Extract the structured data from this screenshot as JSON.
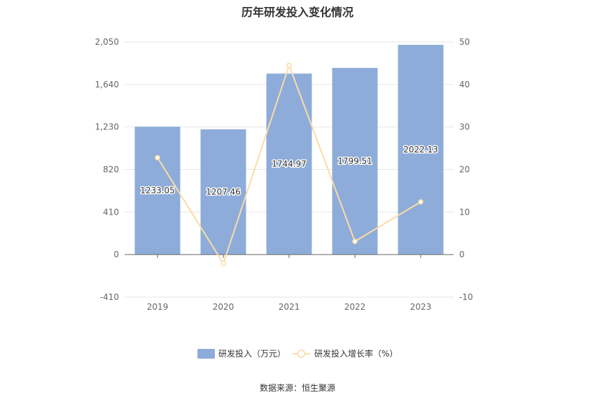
{
  "chart_data": {
    "type": "bar",
    "title": "历年研发投入变化情况",
    "categories": [
      "2019",
      "2020",
      "2021",
      "2022",
      "2023"
    ],
    "series": [
      {
        "name": "研发投入（万元）",
        "type": "bar",
        "axis": "left",
        "values": [
          1233.05,
          1207.46,
          1744.97,
          1799.51,
          2022.13
        ],
        "color": "#8eacd9"
      },
      {
        "name": "研发投入增长率（%）",
        "type": "line",
        "axis": "right",
        "values": [
          22.8,
          -2.1,
          44.5,
          3.1,
          12.4
        ],
        "color": "#fbdca6"
      }
    ],
    "y_left": {
      "min": -410,
      "max": 2050,
      "ticks": [
        -410,
        0,
        410,
        820,
        1230,
        1640,
        2050
      ],
      "tick_labels": [
        "-410",
        "0",
        "410",
        "820",
        "1,230",
        "1,640",
        "2,050"
      ]
    },
    "y_right": {
      "min": -10,
      "max": 50,
      "ticks": [
        -10,
        0,
        10,
        20,
        30,
        40,
        50
      ],
      "tick_labels": [
        "-10",
        "0",
        "10",
        "20",
        "30",
        "40",
        "50"
      ]
    },
    "data_labels": [
      "1233.05",
      "1207.46",
      "1744.97",
      "1799.51",
      "2022.13"
    ],
    "grid": true,
    "legend_position": "bottom"
  },
  "source": "数据来源：恒生聚源"
}
